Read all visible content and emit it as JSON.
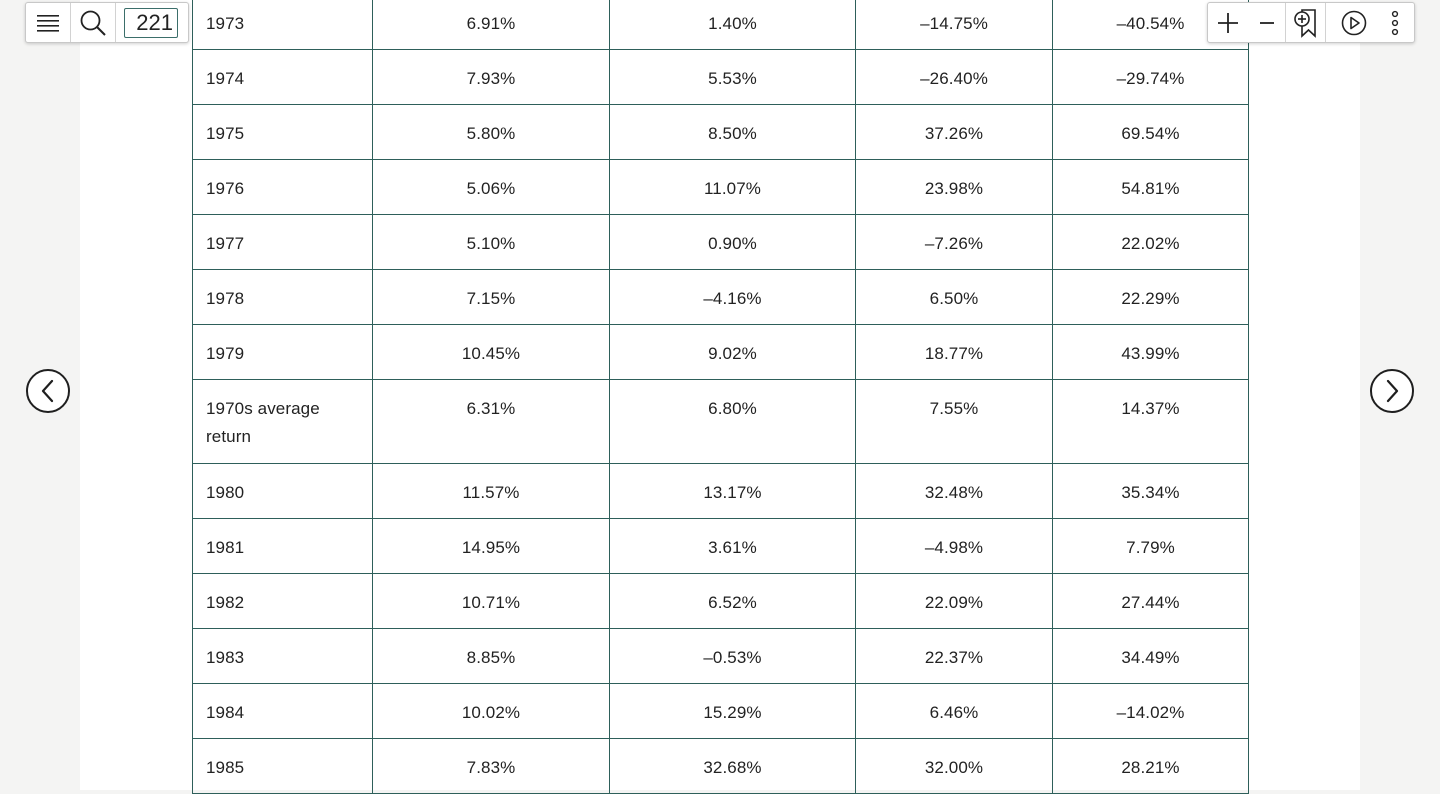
{
  "viewer": {
    "page_number": "221",
    "toolbar_left": {
      "menu_icon": "hamburger-menu-icon",
      "search_icon": "search-icon"
    },
    "toolbar_right": {
      "zoom_in_icon": "plus-icon",
      "zoom_out_icon": "minus-icon",
      "add_bookmark_icon": "bookmark-add-icon",
      "play_icon": "play-circle-icon",
      "more_icon": "vertical-dots-icon"
    },
    "prev_icon": "chevron-left-circle-icon",
    "next_icon": "chevron-right-circle-icon"
  },
  "table": {
    "rows": [
      {
        "year": "1973",
        "c1": "6.91%",
        "c2": "1.40%",
        "c3": "–14.75%",
        "c4": "–40.54%"
      },
      {
        "year": "1974",
        "c1": "7.93%",
        "c2": "5.53%",
        "c3": "–26.40%",
        "c4": "–29.74%"
      },
      {
        "year": "1975",
        "c1": "5.80%",
        "c2": "8.50%",
        "c3": "37.26%",
        "c4": "69.54%"
      },
      {
        "year": "1976",
        "c1": "5.06%",
        "c2": "11.07%",
        "c3": "23.98%",
        "c4": "54.81%"
      },
      {
        "year": "1977",
        "c1": "5.10%",
        "c2": "0.90%",
        "c3": "–7.26%",
        "c4": "22.02%"
      },
      {
        "year": "1978",
        "c1": "7.15%",
        "c2": "–4.16%",
        "c3": "6.50%",
        "c4": "22.29%"
      },
      {
        "year": "1979",
        "c1": "10.45%",
        "c2": "9.02%",
        "c3": "18.77%",
        "c4": "43.99%"
      },
      {
        "year": "1970s average return",
        "c1": "6.31%",
        "c2": "6.80%",
        "c3": "7.55%",
        "c4": "14.37%"
      },
      {
        "year": "1980",
        "c1": "11.57%",
        "c2": "13.17%",
        "c3": "32.48%",
        "c4": "35.34%"
      },
      {
        "year": "1981",
        "c1": "14.95%",
        "c2": "3.61%",
        "c3": "–4.98%",
        "c4": "7.79%"
      },
      {
        "year": "1982",
        "c1": "10.71%",
        "c2": "6.52%",
        "c3": "22.09%",
        "c4": "27.44%"
      },
      {
        "year": "1983",
        "c1": "8.85%",
        "c2": "–0.53%",
        "c3": "22.37%",
        "c4": "34.49%"
      },
      {
        "year": "1984",
        "c1": "10.02%",
        "c2": "15.29%",
        "c3": "6.46%",
        "c4": "–14.02%"
      },
      {
        "year": "1985",
        "c1": "7.83%",
        "c2": "32.68%",
        "c3": "32.00%",
        "c4": "28.21%"
      }
    ]
  }
}
